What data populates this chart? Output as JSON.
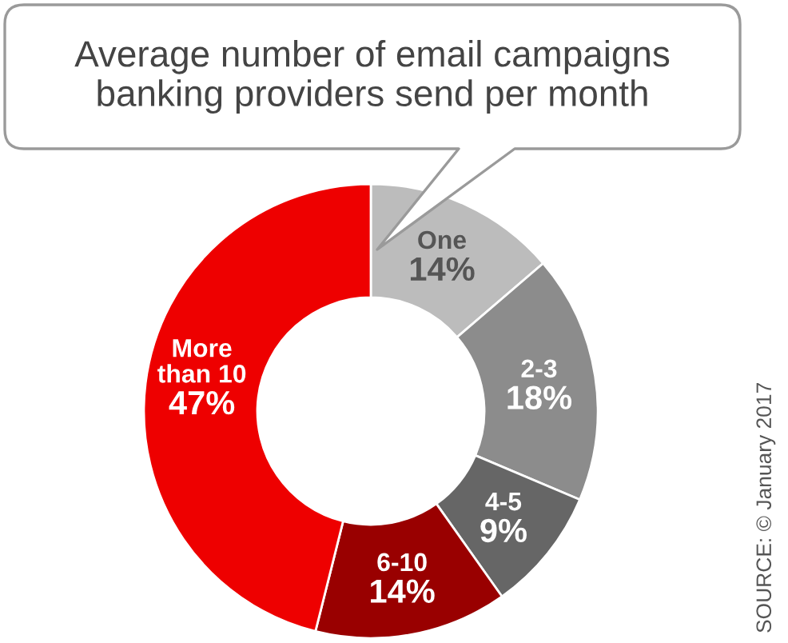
{
  "chart_data": {
    "type": "donut",
    "title": "Average number of email campaigns\nbanking providers send per month",
    "categories": [
      "One",
      "2-3",
      "4-5",
      "6-10",
      "More\nthan 10"
    ],
    "values": [
      14,
      18,
      9,
      14,
      47
    ],
    "colors": [
      "#bcbcbc",
      "#8c8c8c",
      "#666666",
      "#990000",
      "#ee0000"
    ],
    "value_labels": [
      "14%",
      "18%",
      "9%",
      "14%",
      "47%"
    ],
    "annotations": [
      "SOURCE: © January 2017"
    ]
  }
}
